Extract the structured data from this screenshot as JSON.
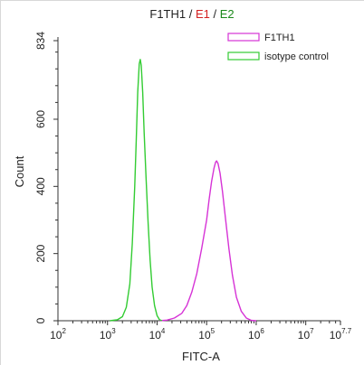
{
  "chart_data": {
    "type": "line",
    "title_parts": [
      {
        "text": "F1TH1",
        "color": "#222222"
      },
      {
        "text": " / ",
        "color": "#222222"
      },
      {
        "text": "E1",
        "color": "#d42020"
      },
      {
        "text": " / ",
        "color": "#222222"
      },
      {
        "text": "E2",
        "color": "#1c8a1c"
      }
    ],
    "xlabel": "FITC-A",
    "ylabel": "Count",
    "xscale": "log",
    "xlim": [
      2,
      7.7
    ],
    "ylim": [
      0,
      834
    ],
    "x_ticks": [
      {
        "exp": 2,
        "base": "10",
        "sup": "2"
      },
      {
        "exp": 3,
        "base": "10",
        "sup": "3"
      },
      {
        "exp": 4,
        "base": "10",
        "sup": "4"
      },
      {
        "exp": 5,
        "base": "10",
        "sup": "5"
      },
      {
        "exp": 6,
        "base": "10",
        "sup": "6"
      },
      {
        "exp": 7,
        "base": "10",
        "sup": "7"
      },
      {
        "exp": 7.7,
        "base": "10",
        "sup": "7.7"
      }
    ],
    "y_ticks": [
      0,
      200,
      400,
      600,
      834
    ],
    "legend_position": "top-right",
    "series": [
      {
        "name": "F1TH1",
        "color": "#d633d6",
        "points": [
          [
            4.05,
            0
          ],
          [
            4.2,
            2
          ],
          [
            4.35,
            8
          ],
          [
            4.5,
            22
          ],
          [
            4.6,
            45
          ],
          [
            4.7,
            85
          ],
          [
            4.8,
            140
          ],
          [
            4.9,
            215
          ],
          [
            5.0,
            300
          ],
          [
            5.05,
            360
          ],
          [
            5.1,
            415
          ],
          [
            5.15,
            455
          ],
          [
            5.18,
            472
          ],
          [
            5.2,
            476
          ],
          [
            5.23,
            468
          ],
          [
            5.27,
            440
          ],
          [
            5.32,
            385
          ],
          [
            5.38,
            305
          ],
          [
            5.45,
            215
          ],
          [
            5.52,
            135
          ],
          [
            5.6,
            70
          ],
          [
            5.7,
            28
          ],
          [
            5.8,
            8
          ],
          [
            5.9,
            1
          ],
          [
            6.0,
            0
          ]
        ]
      },
      {
        "name": "isotype control",
        "color": "#33cc33",
        "points": [
          [
            3.05,
            0
          ],
          [
            3.2,
            3
          ],
          [
            3.3,
            12
          ],
          [
            3.38,
            40
          ],
          [
            3.45,
            110
          ],
          [
            3.5,
            230
          ],
          [
            3.55,
            400
          ],
          [
            3.58,
            540
          ],
          [
            3.61,
            680
          ],
          [
            3.64,
            765
          ],
          [
            3.66,
            778
          ],
          [
            3.68,
            760
          ],
          [
            3.71,
            680
          ],
          [
            3.74,
            560
          ],
          [
            3.78,
            420
          ],
          [
            3.82,
            290
          ],
          [
            3.86,
            180
          ],
          [
            3.9,
            100
          ],
          [
            3.95,
            45
          ],
          [
            4.0,
            15
          ],
          [
            4.05,
            3
          ],
          [
            4.1,
            0
          ]
        ]
      }
    ]
  }
}
